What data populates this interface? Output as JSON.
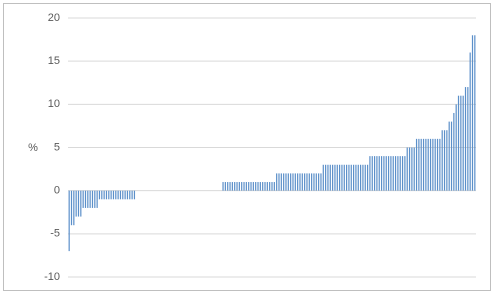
{
  "chart_data": {
    "type": "bar",
    "y_label": "%",
    "color": "#5b8fc9",
    "values": [
      -7,
      -4,
      -4,
      -3,
      -3,
      -3,
      -2,
      -2,
      -2,
      -2,
      -2,
      -2,
      -2,
      -1,
      -1,
      -1,
      -1,
      -1,
      -1,
      -1,
      -1,
      -1,
      -1,
      -1,
      -1,
      -1,
      -1,
      -1,
      -1,
      0,
      0,
      0,
      0,
      0,
      0,
      0,
      0,
      0,
      0,
      0,
      0,
      0,
      0,
      0,
      0,
      0,
      0,
      0,
      0,
      0,
      0,
      0,
      0,
      0,
      0,
      0,
      0,
      0,
      0,
      0,
      0,
      0,
      0,
      0,
      0,
      0,
      1,
      1,
      1,
      1,
      1,
      1,
      1,
      1,
      1,
      1,
      1,
      1,
      1,
      1,
      1,
      1,
      1,
      1,
      1,
      1,
      1,
      1,
      1,
      2,
      2,
      2,
      2,
      2,
      2,
      2,
      2,
      2,
      2,
      2,
      2,
      2,
      2,
      2,
      2,
      2,
      2,
      2,
      2,
      3,
      3,
      3,
      3,
      3,
      3,
      3,
      3,
      3,
      3,
      3,
      3,
      3,
      3,
      3,
      3,
      3,
      3,
      3,
      3,
      4,
      4,
      4,
      4,
      4,
      4,
      4,
      4,
      4,
      4,
      4,
      4,
      4,
      4,
      4,
      4,
      5,
      5,
      5,
      5,
      6,
      6,
      6,
      6,
      6,
      6,
      6,
      6,
      6,
      6,
      6,
      7,
      7,
      7,
      8,
      8,
      9,
      10,
      11,
      11,
      11,
      12,
      12,
      16,
      18,
      18
    ],
    "ylim": [
      -10,
      20
    ],
    "yticks": [
      -10,
      -5,
      0,
      5,
      10,
      15,
      20
    ],
    "grid": true
  }
}
